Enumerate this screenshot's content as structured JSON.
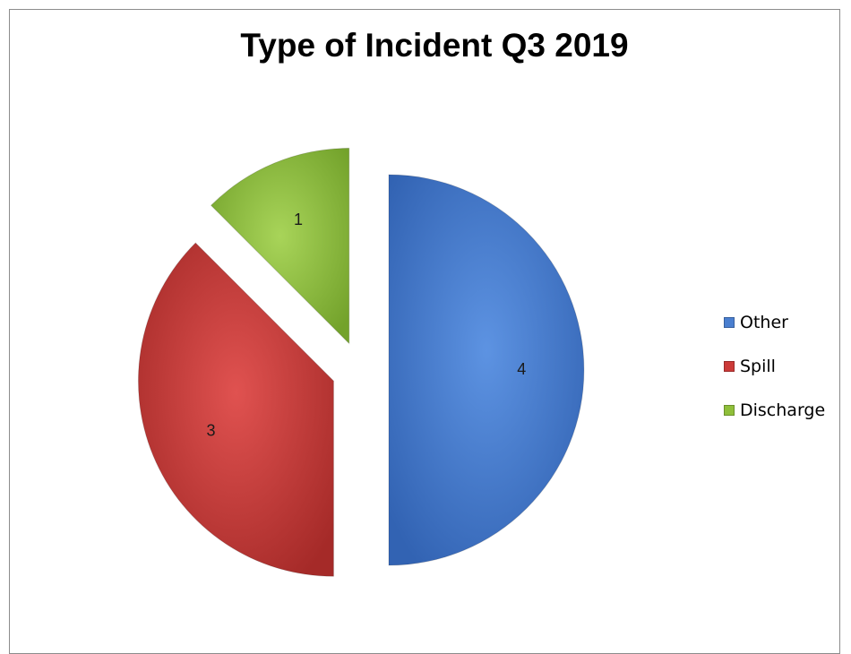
{
  "chart_data": {
    "type": "pie",
    "title": "Type of Incident Q3 2019",
    "slices": [
      {
        "label": "Other",
        "value": 4,
        "color": "#4a7fd0"
      },
      {
        "label": "Spill",
        "value": 3,
        "color": "#cc3a38"
      },
      {
        "label": "Discharge",
        "value": 1,
        "color": "#8fbf3a"
      }
    ],
    "data_labels": true,
    "legend_position": "right",
    "exploded": true
  }
}
